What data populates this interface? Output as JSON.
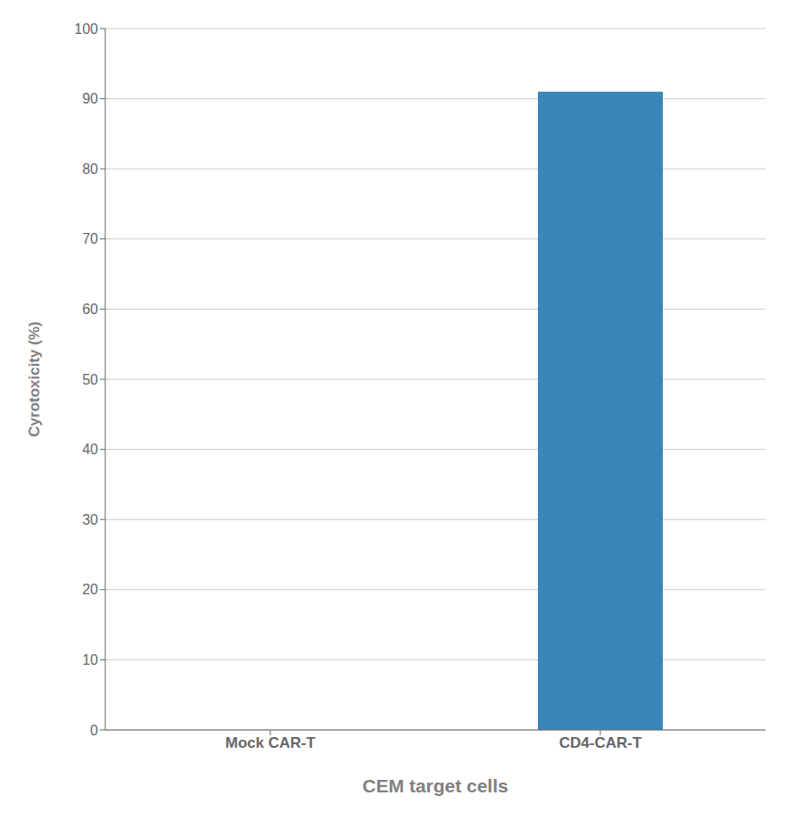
{
  "chart_data": {
    "type": "bar",
    "categories": [
      "Mock CAR-T",
      "CD4-CAR-T"
    ],
    "values": [
      0,
      91
    ],
    "color": "#3a86b8",
    "xlabel": "CEM target cells",
    "ylabel": "Cyrotoxicity (%)",
    "ylim": [
      0,
      100
    ],
    "yticks": [
      0,
      10,
      20,
      30,
      40,
      50,
      60,
      70,
      80,
      90,
      100
    ],
    "grid": true
  }
}
